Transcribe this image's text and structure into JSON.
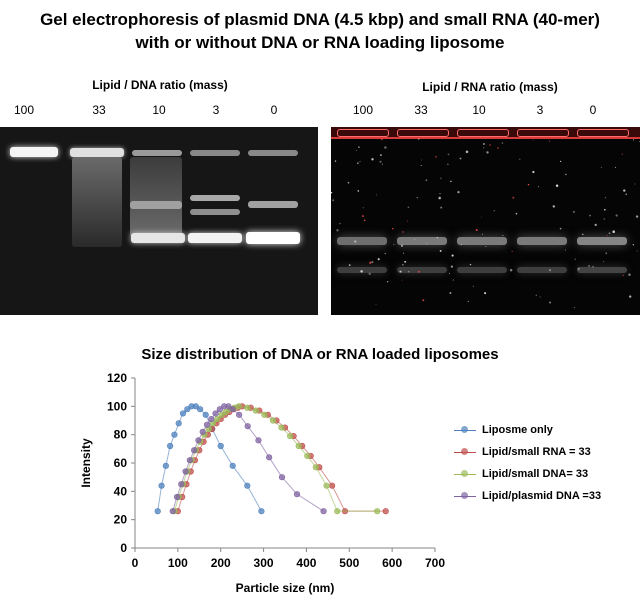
{
  "figure": {
    "title_line1": "Gel electrophoresis of plasmid DNA (4.5 kbp)  and small RNA (40-mer)",
    "title_line2": "with or without DNA or RNA loading liposome"
  },
  "gel_dna": {
    "axis_label": "Lipid / DNA ratio (mass)",
    "lanes": [
      "100",
      "33",
      "10",
      "3",
      "0"
    ]
  },
  "gel_rna": {
    "axis_label": "Lipid / RNA ratio (mass)",
    "lanes": [
      "100",
      "33",
      "10",
      "3",
      "0"
    ]
  },
  "chart_data": {
    "type": "scatter",
    "title": "Size distribution  of DNA or RNA loaded liposomes",
    "xlabel": "Particle size (nm)",
    "ylabel": "Intensity",
    "xlim": [
      0,
      700
    ],
    "ylim": [
      0,
      120
    ],
    "xticks": [
      0,
      100,
      200,
      300,
      400,
      500,
      600,
      700
    ],
    "yticks": [
      0,
      20,
      40,
      60,
      80,
      100,
      120
    ],
    "grid": false,
    "legend_position": "right",
    "series": [
      {
        "name": "Liposme only",
        "color": "#4f81bd",
        "x": [
          53,
          62,
          72,
          82,
          92,
          102,
          112,
          122,
          132,
          142,
          152,
          165,
          180,
          200,
          228,
          262,
          295
        ],
        "y": [
          26,
          44,
          58,
          72,
          80,
          88,
          95,
          98,
          100,
          100,
          98,
          94,
          84,
          72,
          58,
          44,
          26
        ]
      },
      {
        "name": "Lipid/small RNA = 33",
        "color": "#c0504d",
        "x": [
          100,
          110,
          120,
          130,
          140,
          150,
          160,
          170,
          180,
          190,
          200,
          210,
          220,
          230,
          240,
          250,
          270,
          290,
          310,
          330,
          350,
          370,
          390,
          410,
          430,
          460,
          490,
          585
        ],
        "y": [
          26,
          36,
          45,
          54,
          62,
          69,
          75,
          80,
          84,
          88,
          91,
          94,
          96,
          98,
          99,
          100,
          99,
          97,
          94,
          90,
          85,
          79,
          72,
          65,
          57,
          44,
          26,
          26
        ]
      },
      {
        "name": "Lipid/small DNA= 33",
        "color": "#9bbb59",
        "x": [
          92,
          102,
          112,
          122,
          132,
          142,
          152,
          162,
          172,
          182,
          192,
          202,
          212,
          222,
          232,
          242,
          262,
          282,
          302,
          322,
          342,
          362,
          382,
          402,
          422,
          447,
          472,
          565
        ],
        "y": [
          26,
          36,
          45,
          54,
          62,
          69,
          75,
          80,
          84,
          88,
          91,
          94,
          96,
          98,
          99,
          100,
          99,
          97,
          94,
          90,
          85,
          79,
          72,
          65,
          57,
          44,
          26,
          26
        ]
      },
      {
        "name": "Lipid/plasmid DNA =33",
        "color": "#8064a2",
        "x": [
          88,
          98,
          108,
          118,
          128,
          138,
          148,
          158,
          168,
          178,
          188,
          198,
          208,
          218,
          228,
          243,
          263,
          288,
          313,
          343,
          378,
          440
        ],
        "y": [
          26,
          36,
          45,
          54,
          62,
          69,
          76,
          82,
          87,
          91,
          95,
          98,
          100,
          100,
          98,
          94,
          86,
          76,
          64,
          50,
          38,
          26
        ]
      }
    ]
  }
}
